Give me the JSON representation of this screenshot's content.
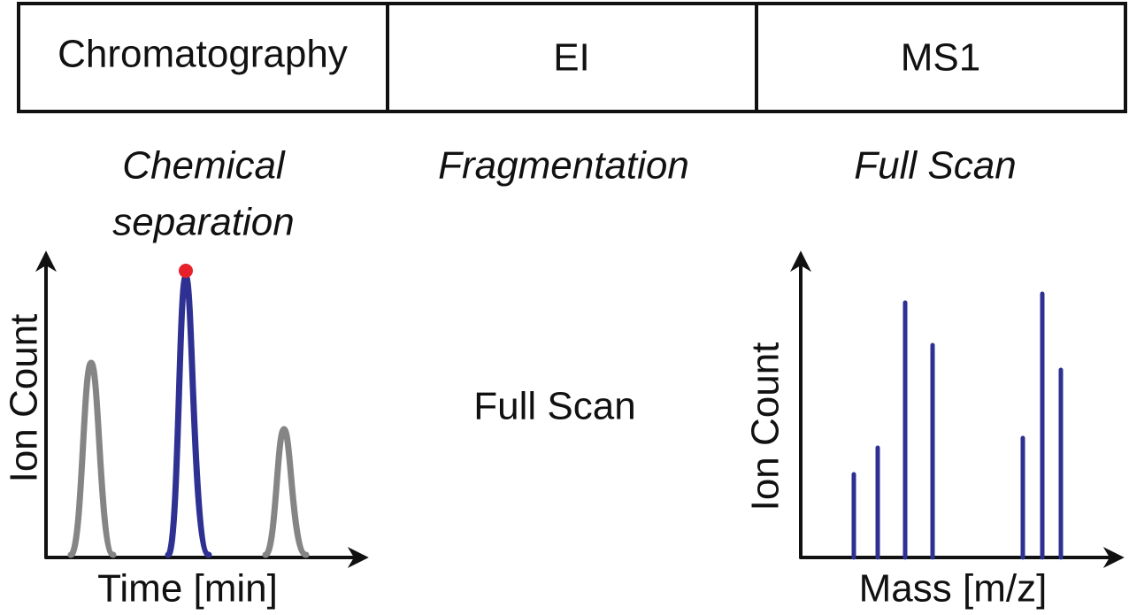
{
  "header": {
    "stages": [
      "Chromatography",
      "EI",
      "MS1"
    ]
  },
  "descriptions": {
    "chromatography": [
      "Chemical",
      "separation"
    ],
    "ei": "Fragmentation",
    "ms1": "Full Scan"
  },
  "middle_label": "Full Scan",
  "left_plot": {
    "y_label": "Ion Count",
    "x_label": "Time [min]"
  },
  "right_plot": {
    "y_label": "Ion Count",
    "x_label": "Mass [m/z]"
  }
}
